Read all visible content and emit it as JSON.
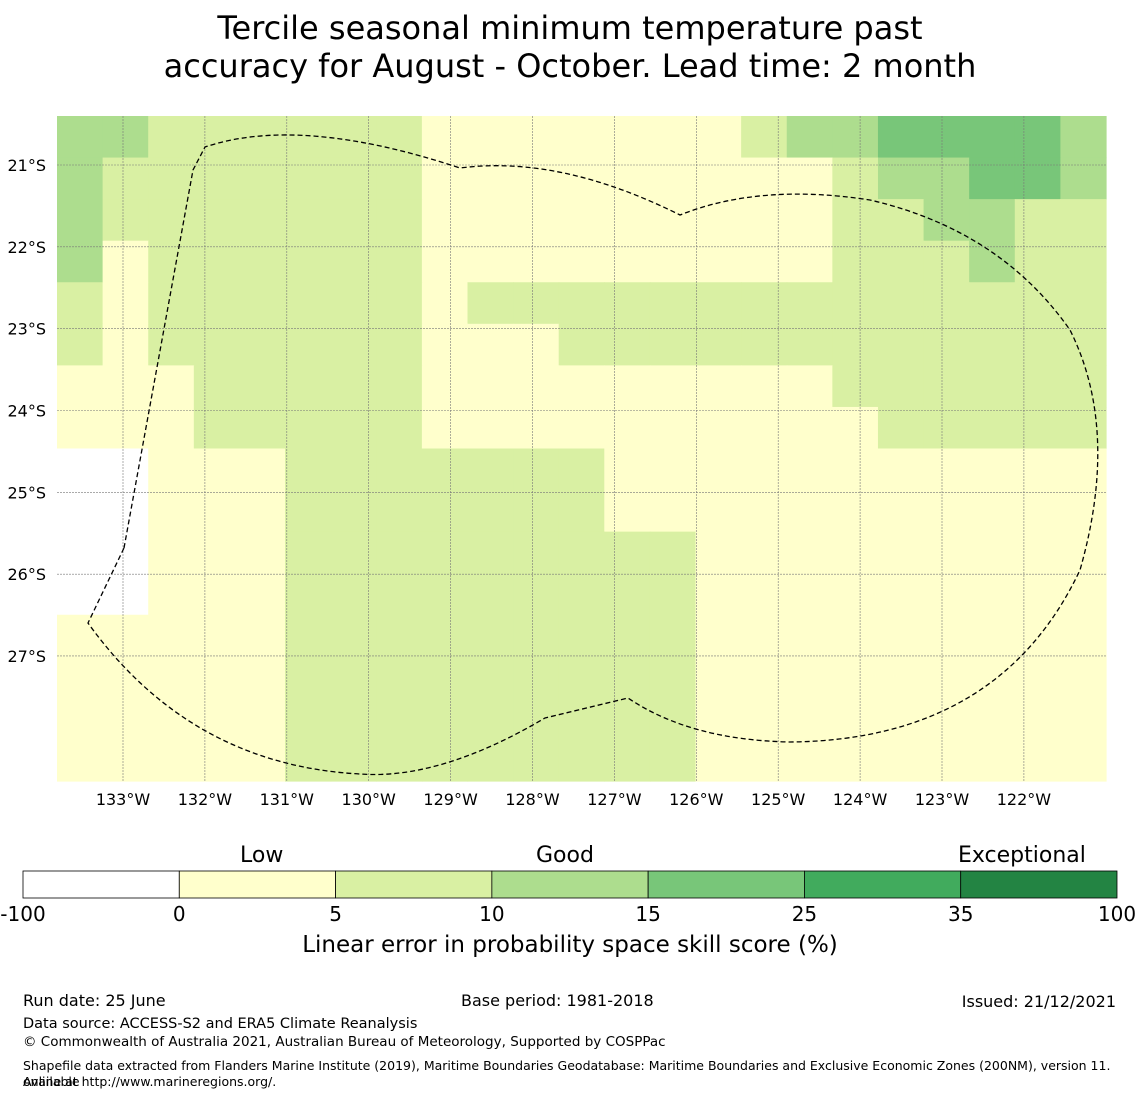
{
  "title": {
    "line1": "Tercile seasonal minimum temperature past",
    "line2": "accuracy for August - October. Lead time: 2 month"
  },
  "map": {
    "lat_labels": [
      "21°S",
      "22°S",
      "23°S",
      "24°S",
      "25°S",
      "26°S",
      "27°S"
    ],
    "lon_labels": [
      "133°W",
      "132°W",
      "131°W",
      "130°W",
      "129°W",
      "128°W",
      "127°W",
      "126°W",
      "125°W",
      "124°W",
      "123°W",
      "122°W"
    ],
    "cell_classes": [
      "33222222111111123344443",
      "32222222111111111233443",
      "32222222111111111223322",
      "31222222111111111222322",
      "21222222122222222222222",
      "21222222111222222222222",
      "11122222111111111222222",
      "11122222111111111122222",
      "00111222222211111111111",
      "00111222222211111111111",
      "00111222222222111111111",
      "00111222222222111111111",
      "11111222222222111111111",
      "11111222222222111111111",
      "11111222222222111111111",
      "11111222222222111111111"
    ],
    "note": "cell_classes rows run north to south, columns west to east; digits are indices into colorbar.colors (0 = no skill)"
  },
  "colorbar": {
    "category_labels": [
      "Low",
      "Good",
      "Exceptional"
    ],
    "tick_labels": [
      "-100",
      "0",
      "5",
      "10",
      "15",
      "25",
      "35",
      "100"
    ],
    "colors": [
      "#ffffff",
      "#ffffcc",
      "#d9f0a3",
      "#addd8e",
      "#78c679",
      "#41ab5d",
      "#238443"
    ],
    "title": "Linear error in probability space skill score (%)"
  },
  "footer": {
    "run_date": "Run date: 25 June",
    "base_period": "Base period: 1981-2018",
    "issued": "Issued: 21/12/2021",
    "data_source": "Data source: ACCESS-S2 and ERA5 Climate Reanalysis",
    "copyright": "© Commonwealth of Australia 2021, Australian Bureau of Meteorology, Supported by COSPPac",
    "shapefile_line1": "Shapefile data extracted from Flanders Marine Institute (2019), Maritime Boundaries Geodatabase: Maritime Boundaries and Exclusive Economic Zones (200NM), version 11. Available",
    "shapefile_line2": "online at http://www.marineregions.org/."
  }
}
